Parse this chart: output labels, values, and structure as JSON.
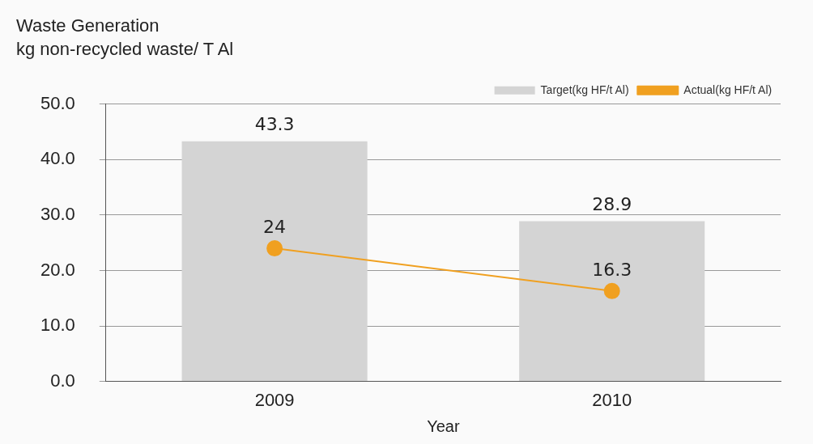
{
  "chart_data": {
    "type": "bar",
    "title": "Waste Generation",
    "subtitle": "kg non-recycled waste/ T Al",
    "xlabel": "Year",
    "categories": [
      "2009",
      "2010"
    ],
    "series": [
      {
        "name": "Target(kg HF/t Al)",
        "color": "#d4d4d4",
        "values": [
          43.3,
          28.9
        ]
      },
      {
        "name": "Actual(kg HF/t Al)",
        "type": "line",
        "color": "#f0a020",
        "values": [
          24,
          16.3
        ]
      }
    ],
    "ylim": [
      0,
      50
    ],
    "yticks": [
      {
        "value": 0,
        "label": "0.0"
      },
      {
        "value": 10,
        "label": "10.0"
      },
      {
        "value": 20,
        "label": "20.0"
      },
      {
        "value": 30,
        "label": "30.0"
      },
      {
        "value": 40,
        "label": "40.0"
      },
      {
        "value": 50,
        "label": "50.0"
      }
    ],
    "grid": "y",
    "legend": "top right",
    "marker": "circle",
    "data_labels": true
  }
}
